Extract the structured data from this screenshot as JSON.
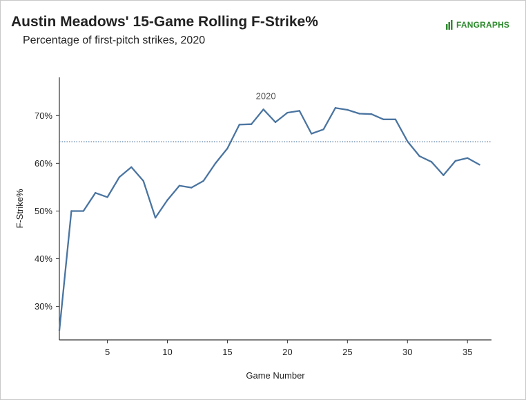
{
  "header": {
    "title": "Austin Meadows' 15-Game Rolling F-Strike%",
    "subtitle": "Percentage of first-pitch strikes, 2020",
    "brand": "FANGRAPHS"
  },
  "colors": {
    "line": "#4a74a0",
    "reference": "#4a74a0",
    "brand": "#2e8b2e",
    "axis": "#333333"
  },
  "chart_data": {
    "type": "line",
    "xlabel": "Game Number",
    "ylabel": "F-Strike%",
    "xlim": [
      1,
      37
    ],
    "ylim": [
      0.23,
      0.78
    ],
    "x_ticks": [
      5,
      10,
      15,
      20,
      25,
      30,
      35
    ],
    "x_tick_labels": [
      "5",
      "10",
      "15",
      "20",
      "25",
      "30",
      "35"
    ],
    "y_ticks": [
      0.3,
      0.4,
      0.5,
      0.6,
      0.7
    ],
    "y_tick_labels": [
      "30%",
      "40%",
      "50%",
      "60%",
      "70%"
    ],
    "grid": false,
    "reference_line": {
      "y": 0.645,
      "style": "dotted"
    },
    "annotation": {
      "text": "2020",
      "x": 18.2,
      "y": 0.74
    },
    "series": [
      {
        "x": [
          1,
          2,
          3,
          4,
          5,
          6,
          7,
          8,
          9,
          10,
          11,
          12,
          13,
          14,
          15,
          16,
          17,
          18,
          19,
          20,
          21,
          22,
          23,
          24,
          25,
          26,
          27,
          28,
          29,
          30,
          31,
          32,
          33,
          34,
          35,
          36
        ],
        "y": [
          0.25,
          0.5,
          0.5,
          0.538,
          0.529,
          0.571,
          0.592,
          0.563,
          0.486,
          0.523,
          0.553,
          0.549,
          0.563,
          0.6,
          0.631,
          0.681,
          0.682,
          0.713,
          0.686,
          0.706,
          0.71,
          0.662,
          0.671,
          0.716,
          0.712,
          0.704,
          0.703,
          0.692,
          0.692,
          0.646,
          0.615,
          0.603,
          0.575,
          0.605,
          0.611,
          0.597
        ]
      }
    ]
  }
}
